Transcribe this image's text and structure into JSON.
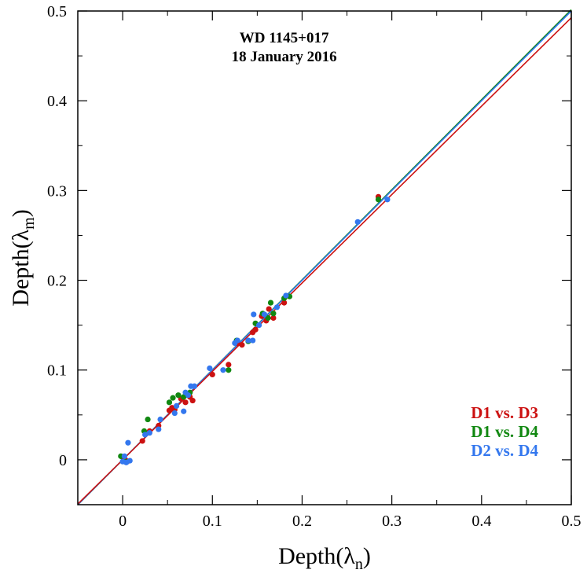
{
  "chart_data": {
    "type": "scatter",
    "title": "WD 1145+017",
    "subtitle": "18 January 2016",
    "xlabel": {
      "main": "Depth(",
      "greek": "λ",
      "sub": "n",
      "close": ")"
    },
    "ylabel": {
      "main": "Depth(",
      "greek": "λ",
      "sub": "m",
      "close": ")"
    },
    "xlim": [
      -0.05,
      0.5
    ],
    "ylim": [
      -0.05,
      0.5
    ],
    "xticks": [
      0,
      0.1,
      0.2,
      0.3,
      0.4,
      0.5
    ],
    "yticks": [
      0,
      0.1,
      0.2,
      0.3,
      0.4,
      0.5
    ],
    "xtick_labels": [
      "0",
      "0.1",
      "0.2",
      "0.3",
      "0.4",
      "0.5"
    ],
    "ytick_labels": [
      "0",
      "0.1",
      "0.2",
      "0.3",
      "0.4",
      "0.5"
    ],
    "grid": false,
    "legend_position": "bottom-right",
    "series": [
      {
        "name": "D1 vs. D3",
        "color": "#cc1111",
        "fit_slope": 0.985,
        "points": [
          [
            0.0,
            0.003
          ],
          [
            0.001,
            -0.001
          ],
          [
            0.003,
            0.0
          ],
          [
            0.005,
            -0.002
          ],
          [
            0.022,
            0.021
          ],
          [
            0.03,
            0.032
          ],
          [
            0.04,
            0.038
          ],
          [
            0.052,
            0.055
          ],
          [
            0.055,
            0.058
          ],
          [
            0.058,
            0.056
          ],
          [
            0.065,
            0.068
          ],
          [
            0.07,
            0.064
          ],
          [
            0.075,
            0.07
          ],
          [
            0.078,
            0.066
          ],
          [
            0.1,
            0.095
          ],
          [
            0.118,
            0.106
          ],
          [
            0.128,
            0.13
          ],
          [
            0.133,
            0.128
          ],
          [
            0.145,
            0.142
          ],
          [
            0.148,
            0.145
          ],
          [
            0.155,
            0.16
          ],
          [
            0.16,
            0.155
          ],
          [
            0.163,
            0.168
          ],
          [
            0.168,
            0.158
          ],
          [
            0.18,
            0.175
          ],
          [
            0.285,
            0.293
          ]
        ]
      },
      {
        "name": "D1 vs. D4",
        "color": "#118811",
        "fit_slope": 1.003,
        "points": [
          [
            -0.002,
            0.004
          ],
          [
            0.003,
            -0.002
          ],
          [
            0.024,
            0.032
          ],
          [
            0.028,
            0.045
          ],
          [
            0.052,
            0.064
          ],
          [
            0.056,
            0.069
          ],
          [
            0.062,
            0.072
          ],
          [
            0.068,
            0.07
          ],
          [
            0.075,
            0.075
          ],
          [
            0.118,
            0.1
          ],
          [
            0.127,
            0.133
          ],
          [
            0.14,
            0.132
          ],
          [
            0.148,
            0.152
          ],
          [
            0.156,
            0.163
          ],
          [
            0.162,
            0.158
          ],
          [
            0.165,
            0.175
          ],
          [
            0.168,
            0.163
          ],
          [
            0.18,
            0.18
          ],
          [
            0.186,
            0.182
          ],
          [
            0.285,
            0.29
          ]
        ]
      },
      {
        "name": "D2 vs. D4",
        "color": "#3377ee",
        "fit_slope": 1.0,
        "points": [
          [
            0.0,
            -0.002
          ],
          [
            0.002,
            0.004
          ],
          [
            0.004,
            -0.003
          ],
          [
            0.006,
            0.019
          ],
          [
            0.008,
            -0.001
          ],
          [
            0.025,
            0.028
          ],
          [
            0.03,
            0.03
          ],
          [
            0.04,
            0.034
          ],
          [
            0.042,
            0.045
          ],
          [
            0.058,
            0.052
          ],
          [
            0.06,
            0.06
          ],
          [
            0.068,
            0.054
          ],
          [
            0.07,
            0.075
          ],
          [
            0.073,
            0.072
          ],
          [
            0.076,
            0.082
          ],
          [
            0.08,
            0.082
          ],
          [
            0.097,
            0.102
          ],
          [
            0.112,
            0.1
          ],
          [
            0.125,
            0.13
          ],
          [
            0.128,
            0.133
          ],
          [
            0.14,
            0.133
          ],
          [
            0.145,
            0.133
          ],
          [
            0.146,
            0.162
          ],
          [
            0.152,
            0.15
          ],
          [
            0.158,
            0.162
          ],
          [
            0.172,
            0.17
          ],
          [
            0.182,
            0.183
          ],
          [
            0.262,
            0.265
          ],
          [
            0.295,
            0.29
          ]
        ]
      }
    ]
  }
}
